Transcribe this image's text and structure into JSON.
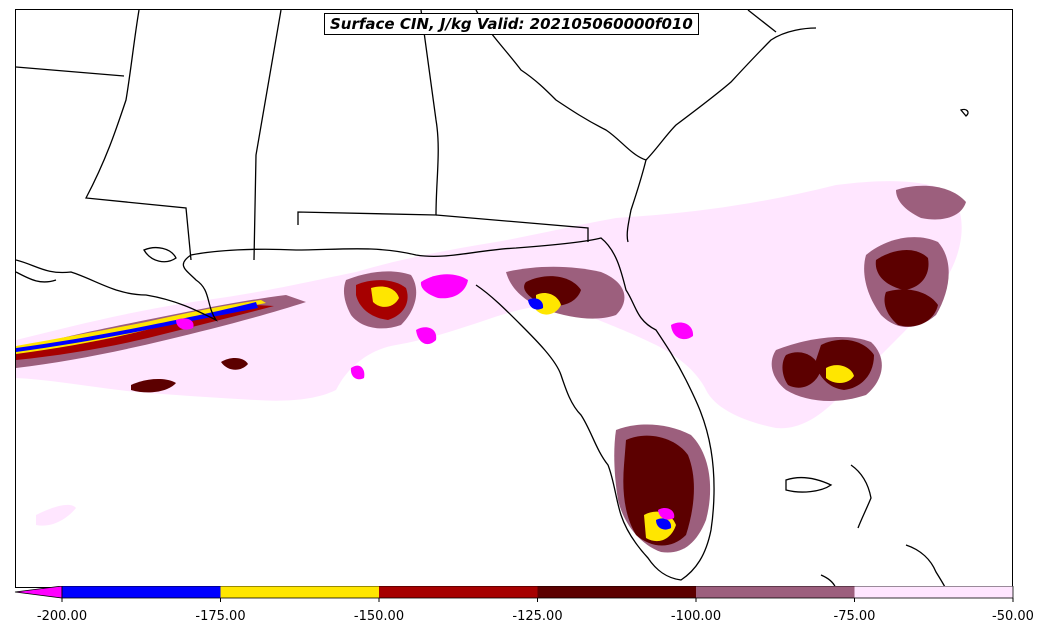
{
  "title": "Surface CIN, J/kg Valid: 202105060000f010",
  "colorbar": {
    "min": -200,
    "max": -50,
    "extend": "min",
    "ticks": [
      "-200.00",
      "-175.00",
      "-150.00",
      "-125.00",
      "-100.00",
      "-75.00",
      "-50.00"
    ],
    "bins": [
      {
        "from": -200,
        "to": -175,
        "color": "#0000ff"
      },
      {
        "from": -175,
        "to": -150,
        "color": "#ffe600"
      },
      {
        "from": -150,
        "to": -125,
        "color": "#a60000"
      },
      {
        "from": -125,
        "to": -100,
        "color": "#5c0000"
      },
      {
        "from": -100,
        "to": -75,
        "color": "#9c5f7d"
      },
      {
        "from": -75,
        "to": -50,
        "color": "#ffe6ff"
      }
    ],
    "under_color": "#ff00ff"
  },
  "colors": {
    "very_low": "#ff00ff",
    "level_1": "#0000ff",
    "level_2": "#ffe600",
    "level_3": "#a60000",
    "level_4": "#5c0000",
    "level_5": "#9c5f7d",
    "level_6": "#ffe6ff",
    "boundaries": "#000000"
  }
}
